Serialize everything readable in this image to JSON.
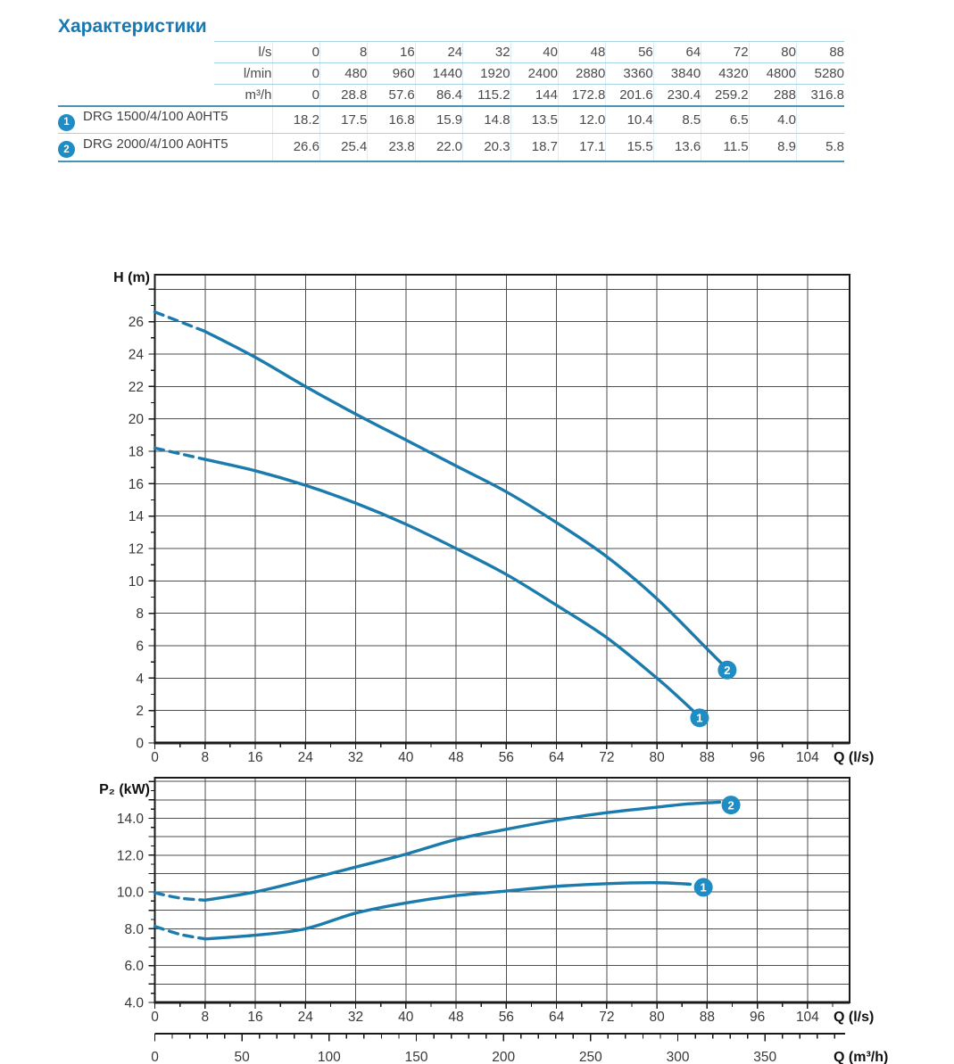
{
  "page_title": "Характеристики",
  "colors": {
    "title_blue": "#1878b4",
    "curve_blue": "#1b7bac",
    "marker_blue": "#1f8cc3",
    "grid": "#4e4e4e",
    "axis": "#1a1a1a",
    "tick_text": "#383838",
    "table_rule_light": "#a5d3e2",
    "table_rule_heavy": "#4796ae",
    "table_col_sep": "#d8edf4"
  },
  "table": {
    "unit_rows": [
      {
        "label": "l/s",
        "values": [
          "0",
          "8",
          "16",
          "24",
          "32",
          "40",
          "48",
          "56",
          "64",
          "72",
          "80",
          "88"
        ]
      },
      {
        "label": "l/min",
        "values": [
          "0",
          "480",
          "960",
          "1440",
          "1920",
          "2400",
          "2880",
          "3360",
          "3840",
          "4320",
          "4800",
          "5280"
        ]
      },
      {
        "label": "m³/h",
        "values": [
          "0",
          "28.8",
          "57.6",
          "86.4",
          "115.2",
          "144",
          "172.8",
          "201.6",
          "230.4",
          "259.2",
          "288",
          "316.8"
        ]
      }
    ],
    "pump_rows": [
      {
        "num": "1",
        "name": "DRG 1500/4/100 A0HT5",
        "values": [
          "18.2",
          "17.5",
          "16.8",
          "15.9",
          "14.8",
          "13.5",
          "12.0",
          "10.4",
          "8.5",
          "6.5",
          "4.0",
          ""
        ]
      },
      {
        "num": "2",
        "name": "DRG 2000/4/100 A0HT5",
        "values": [
          "26.6",
          "25.4",
          "23.8",
          "22.0",
          "20.3",
          "18.7",
          "17.1",
          "15.5",
          "13.6",
          "11.5",
          "8.9",
          "5.8"
        ]
      }
    ]
  },
  "chart_data": [
    {
      "type": "line",
      "title": "Head curves",
      "ylabel": "H (m)",
      "xlabel": "Q (l/s)",
      "xlim": [
        0,
        110.7
      ],
      "ylim": [
        0,
        28.9
      ],
      "x_grid_step": 8,
      "x_label_step": 8,
      "x_label_max": 104,
      "x_minor_step": 4,
      "x_minor_max": 108,
      "y_grid_step": 2,
      "y_label_step": 2,
      "y_label_max": 26,
      "y_minor_step": 1,
      "y_decimals": 0,
      "grid": true,
      "series": [
        {
          "name": "1",
          "model": "DRG 1500/4/100 A0HT5",
          "dashed_points": [
            [
              0,
              18.2
            ],
            [
              8,
              17.5
            ]
          ],
          "points": [
            [
              8,
              17.5
            ],
            [
              16,
              16.8
            ],
            [
              24,
              15.9
            ],
            [
              32,
              14.8
            ],
            [
              40,
              13.5
            ],
            [
              48,
              12.0
            ],
            [
              56,
              10.4
            ],
            [
              64,
              8.5
            ],
            [
              72,
              6.5
            ],
            [
              80,
              4.0
            ],
            [
              83.5,
              2.8
            ],
            [
              86,
              1.9
            ]
          ],
          "marker": {
            "label": "1",
            "x": 86.8,
            "y": 1.55
          }
        },
        {
          "name": "2",
          "model": "DRG 2000/4/100 A0HT5",
          "dashed_points": [
            [
              0,
              26.6
            ],
            [
              8,
              25.4
            ]
          ],
          "points": [
            [
              8,
              25.4
            ],
            [
              16,
              23.8
            ],
            [
              24,
              22.0
            ],
            [
              32,
              20.3
            ],
            [
              40,
              18.7
            ],
            [
              48,
              17.1
            ],
            [
              56,
              15.5
            ],
            [
              64,
              13.6
            ],
            [
              72,
              11.5
            ],
            [
              80,
              8.9
            ],
            [
              88,
              5.8
            ],
            [
              90.2,
              4.95
            ]
          ],
          "marker": {
            "label": "2",
            "x": 91.2,
            "y": 4.5
          }
        }
      ]
    },
    {
      "type": "line",
      "title": "Power curves",
      "ylabel": "P₂ (kW)",
      "xlabel": "Q (l/s)",
      "xlim": [
        0,
        110.7
      ],
      "ylim": [
        4,
        16.2
      ],
      "x_grid_step": 8,
      "x_label_step": 8,
      "x_label_max": 104,
      "x_minor_step": 4,
      "x_minor_max": 108,
      "y_grid_step": 1,
      "y_label_step": 2,
      "y_label_max": 14,
      "y_minor_step": 0.5,
      "y_decimals": 1,
      "grid": true,
      "secondary_x": {
        "label": "Q (m³/h)",
        "unit_factor": 3.6,
        "tick_step": 50,
        "tick_max": 350,
        "minor_step": 10,
        "minor_max": 390
      },
      "series": [
        {
          "name": "1",
          "model": "DRG 1500/4/100 A0HT5",
          "dashed_points": [
            [
              0,
              8.13
            ],
            [
              4,
              7.7
            ],
            [
              8,
              7.45
            ]
          ],
          "points": [
            [
              8,
              7.45
            ],
            [
              16,
              7.65
            ],
            [
              24,
              8.0
            ],
            [
              32,
              8.85
            ],
            [
              40,
              9.4
            ],
            [
              48,
              9.8
            ],
            [
              56,
              10.05
            ],
            [
              64,
              10.3
            ],
            [
              72,
              10.45
            ],
            [
              80,
              10.5
            ],
            [
              85.3,
              10.42
            ]
          ],
          "marker": {
            "label": "1",
            "x": 87.4,
            "y": 10.25
          }
        },
        {
          "name": "2",
          "model": "DRG 2000/4/100 A0HT5",
          "dashed_points": [
            [
              0,
              9.95
            ],
            [
              4,
              9.67
            ],
            [
              8,
              9.55
            ]
          ],
          "points": [
            [
              8,
              9.55
            ],
            [
              16,
              10.0
            ],
            [
              24,
              10.65
            ],
            [
              32,
              11.35
            ],
            [
              40,
              12.05
            ],
            [
              48,
              12.85
            ],
            [
              56,
              13.4
            ],
            [
              64,
              13.9
            ],
            [
              72,
              14.3
            ],
            [
              80,
              14.6
            ],
            [
              85,
              14.78
            ],
            [
              90,
              14.87
            ]
          ],
          "marker": {
            "label": "2",
            "x": 91.8,
            "y": 14.72
          }
        }
      ]
    }
  ]
}
